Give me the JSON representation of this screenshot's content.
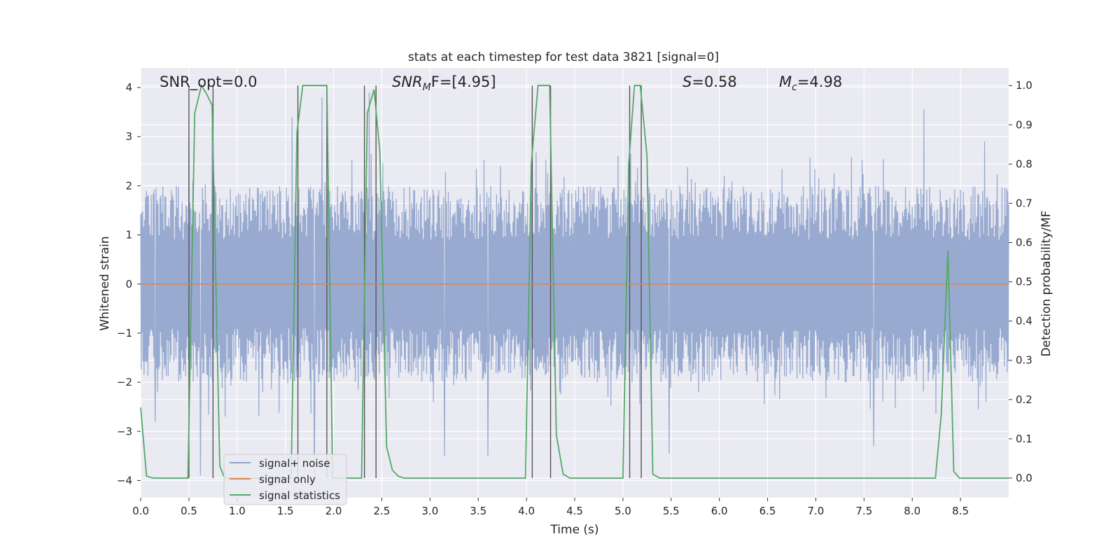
{
  "chart_data": {
    "type": "line",
    "title": "stats at each timestep for test data 3821 [signal=0]",
    "xlabel": "Time (s)",
    "ylabel": "Whitened strain",
    "y2label": "Detection probability/MF",
    "xlim": [
      0.0,
      9.0
    ],
    "ylim": [
      -4.35,
      4.4
    ],
    "y2lim": [
      -0.05,
      1.045
    ],
    "xticks": [
      "0.0",
      "0.5",
      "1.0",
      "1.5",
      "2.0",
      "2.5",
      "3.0",
      "3.5",
      "4.0",
      "4.5",
      "5.0",
      "5.5",
      "6.0",
      "6.5",
      "7.0",
      "7.5",
      "8.0",
      "8.5"
    ],
    "yticks": [
      "4",
      "3",
      "2",
      "1",
      "0",
      "−1",
      "−2",
      "−3",
      "−4"
    ],
    "y2ticks": [
      "1.0",
      "0.9",
      "0.8",
      "0.7",
      "0.6",
      "0.5",
      "0.4",
      "0.3",
      "0.2",
      "0.1",
      "0.0"
    ],
    "grid": true,
    "legend_position": "lower-left",
    "annotations": {
      "snr_opt": "SNR_opt=0.0",
      "snr_mf_sym": "SNR",
      "snr_mf_sub": "M",
      "snr_mf_tail": "F=[4.95]",
      "s_sym": "S",
      "s_val": "=0.58",
      "mc_sym": "M",
      "mc_sub": "c",
      "mc_val": "=4.98"
    },
    "noise_envelope": {
      "description_free": true,
      "upper_typical": 1.6,
      "lower_typical": -1.5,
      "extreme_upper": [
        [
          0.5,
          3.0
        ],
        [
          0.74,
          3.2
        ],
        [
          1.57,
          3.4
        ],
        [
          1.88,
          3.8
        ],
        [
          2.37,
          3.9
        ],
        [
          4.06,
          3.0
        ],
        [
          8.12,
          3.55
        ],
        [
          8.75,
          2.9
        ]
      ],
      "extreme_lower": [
        [
          0.15,
          -2.8
        ],
        [
          0.62,
          -3.9
        ],
        [
          1.8,
          -3.9
        ],
        [
          3.15,
          -3.5
        ],
        [
          3.6,
          -3.5
        ],
        [
          5.48,
          -3.45
        ],
        [
          7.6,
          -3.3
        ]
      ]
    },
    "series": [
      {
        "name": "signal+ noise",
        "color": "#8fa3cc",
        "kind": "noise"
      },
      {
        "name": "signal only",
        "color": "#dd8452",
        "x": [
          0.0,
          9.0
        ],
        "values": [
          0.0,
          0.0
        ]
      },
      {
        "name": "signal statistics",
        "color": "#55a868",
        "axis": "right",
        "x": [
          0.0,
          0.06,
          0.13,
          0.49,
          0.56,
          0.63,
          0.68,
          0.74,
          0.82,
          0.87,
          1.56,
          1.62,
          1.68,
          1.93,
          1.99,
          2.05,
          2.29,
          2.35,
          2.42,
          2.48,
          2.55,
          2.61,
          2.67,
          2.73,
          3.99,
          4.05,
          4.12,
          4.24,
          4.31,
          4.38,
          4.45,
          5.0,
          5.06,
          5.12,
          5.18,
          5.25,
          5.31,
          5.38,
          8.24,
          8.3,
          8.37,
          8.43,
          8.49,
          9.0
        ],
        "values": [
          0.18,
          0.005,
          0.0,
          0.0,
          0.93,
          1.0,
          0.98,
          0.95,
          0.03,
          0.0,
          0.0,
          0.88,
          1.0,
          1.0,
          0.0,
          0.0,
          0.0,
          0.93,
          0.99,
          0.83,
          0.08,
          0.02,
          0.005,
          0.0,
          0.0,
          0.8,
          1.0,
          1.0,
          0.11,
          0.01,
          0.0,
          0.0,
          0.8,
          1.0,
          1.0,
          0.82,
          0.01,
          0.0,
          0.0,
          0.16,
          0.58,
          0.017,
          0.0,
          0.0
        ]
      }
    ],
    "vertical_markers": {
      "color": "#555555",
      "x": [
        0.5,
        0.75,
        1.63,
        1.93,
        2.32,
        2.44,
        4.06,
        4.25,
        5.07,
        5.19
      ]
    }
  }
}
